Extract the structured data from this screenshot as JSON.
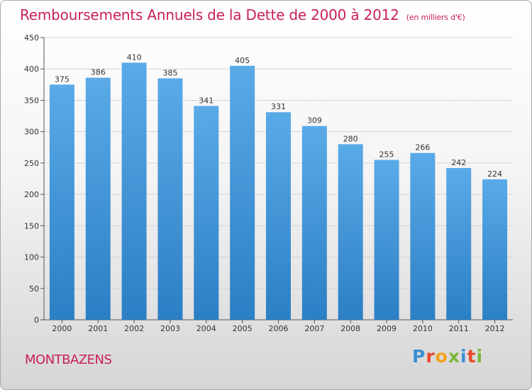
{
  "title": "Remboursements Annuels de la Dette de 2000 à 2012",
  "unit_label": "(en milliers d'€)",
  "commune": "MONTBAZENS",
  "brand": {
    "letters": [
      {
        "char": "P",
        "color": "#3a8fd6"
      },
      {
        "char": "r",
        "color": "#e8482b"
      },
      {
        "char": "o",
        "color": "#f2a21b"
      },
      {
        "char": "x",
        "color": "#7ab83a"
      },
      {
        "char": "i",
        "color": "#3a8fd6"
      },
      {
        "char": "t",
        "color": "#e8482b"
      },
      {
        "char": "i",
        "color": "#7ab83a"
      }
    ]
  },
  "colors": {
    "title": "#c8205e",
    "bar_top": "#5aaae8",
    "bar_bottom": "#2b7fc4",
    "grid": "#d4d4d4",
    "axis": "#555555"
  },
  "chart_data": {
    "type": "bar",
    "title": "Remboursements Annuels de la Dette de 2000 à 2012",
    "xlabel": "",
    "ylabel": "",
    "categories": [
      "2000",
      "2001",
      "2002",
      "2003",
      "2004",
      "2005",
      "2006",
      "2007",
      "2008",
      "2009",
      "2010",
      "2011",
      "2012"
    ],
    "values": [
      375,
      386,
      410,
      385,
      341,
      405,
      331,
      309,
      280,
      255,
      266,
      242,
      224
    ],
    "ylim": [
      0,
      450
    ],
    "yticks": [
      0,
      50,
      100,
      150,
      200,
      250,
      300,
      350,
      400,
      450
    ],
    "grid": true
  }
}
